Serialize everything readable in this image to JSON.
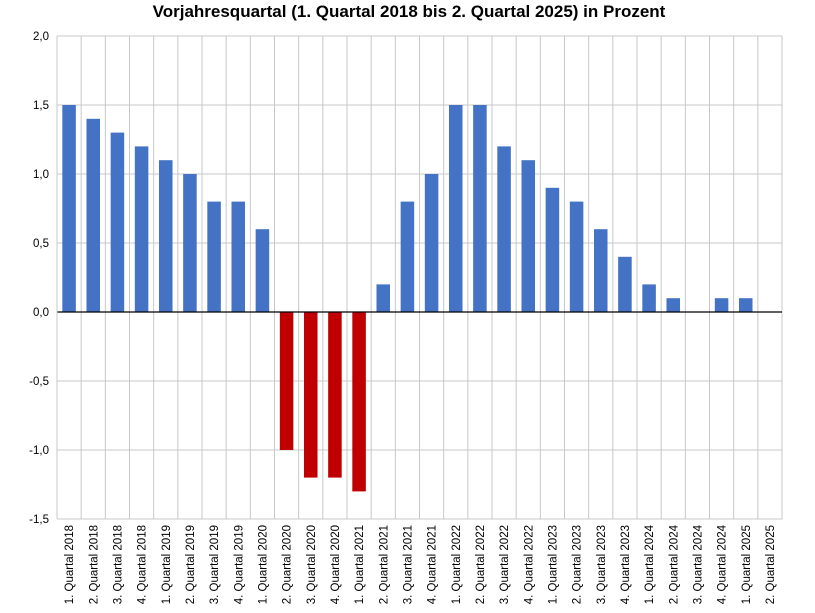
{
  "chart_data": {
    "type": "bar",
    "title": "Vorjahresquartal (1. Quartal 2018 bis 2. Quartal 2025) in Prozent",
    "xlabel": "",
    "ylabel": "",
    "ylim": [
      -1.5,
      2.0
    ],
    "yticks": [
      2.0,
      1.5,
      1.0,
      0.5,
      0.0,
      -0.5,
      -1.0,
      -1.5
    ],
    "ytick_labels": [
      "2,0",
      "1,5",
      "1,0",
      "0,5",
      "0,0",
      "-0,5",
      "-1,0",
      "-1,5"
    ],
    "grid": true,
    "legend": "none",
    "colors": {
      "positive": "#4472C4",
      "negative": "#C00000",
      "grid": "#C8C8C8",
      "axis": "#000000"
    },
    "categories": [
      "1. Quartal 2018",
      "2. Quartal 2018",
      "3. Quartal 2018",
      "4. Quartal 2018",
      "1. Quartal 2019",
      "2. Quartal 2019",
      "3. Quartal 2019",
      "4. Quartal 2019",
      "1. Quartal 2020",
      "2. Quartal 2020",
      "3. Quartal 2020",
      "4. Quartal 2020",
      "1. Quartal 2021",
      "2. Quartal 2021",
      "3. Quartal 2021",
      "4. Quartal 2021",
      "1. Quartal 2022",
      "2. Quartal 2022",
      "3. Quartal 2022",
      "4. Quartal 2022",
      "1. Quartal 2023",
      "2. Quartal 2023",
      "3. Quartal 2023",
      "4. Quartal 2023",
      "1. Quartal 2024",
      "2. Quartal 2024",
      "3. Quartal 2024",
      "4. Quartal 2024",
      "1. Quartal 2025",
      "2. Quartal 2025"
    ],
    "values": [
      1.5,
      1.4,
      1.3,
      1.2,
      1.1,
      1.0,
      0.8,
      0.8,
      0.6,
      -1.0,
      -1.2,
      -1.2,
      -1.3,
      0.2,
      0.8,
      1.0,
      1.5,
      1.5,
      1.2,
      1.1,
      0.9,
      0.8,
      0.6,
      0.4,
      0.2,
      0.1,
      0.0,
      0.1,
      0.1,
      null
    ]
  }
}
